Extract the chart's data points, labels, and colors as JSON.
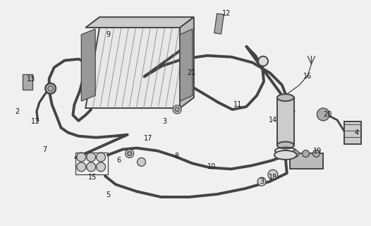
{
  "bg_color": "#f0f0f0",
  "line_color": "#444444",
  "figsize": [
    5.26,
    3.2
  ],
  "dpi": 100,
  "labels": [
    [
      "2",
      22,
      158
    ],
    [
      "3",
      233,
      172
    ],
    [
      "3",
      372,
      258
    ],
    [
      "4",
      508,
      188
    ],
    [
      "5",
      152,
      277
    ],
    [
      "6",
      168,
      228
    ],
    [
      "7",
      62,
      212
    ],
    [
      "8",
      250,
      222
    ],
    [
      "9",
      152,
      48
    ],
    [
      "10",
      300,
      237
    ],
    [
      "11",
      48,
      172
    ],
    [
      "11",
      338,
      148
    ],
    [
      "12",
      322,
      18
    ],
    [
      "13",
      42,
      112
    ],
    [
      "14",
      388,
      170
    ],
    [
      "15",
      130,
      252
    ],
    [
      "16",
      438,
      108
    ],
    [
      "17",
      210,
      196
    ],
    [
      "18",
      388,
      252
    ],
    [
      "19",
      452,
      214
    ],
    [
      "20",
      466,
      162
    ],
    [
      "21",
      272,
      102
    ]
  ]
}
